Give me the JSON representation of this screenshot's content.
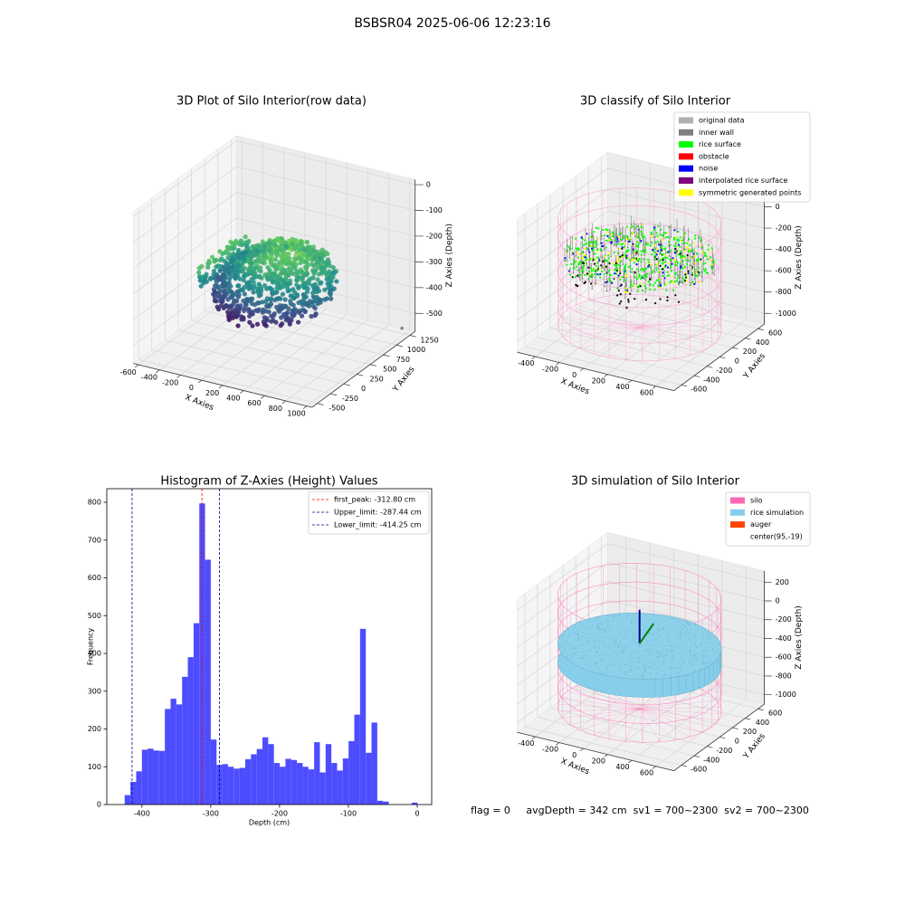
{
  "title": "BSBSR04 2025-06-06 12:23:16",
  "chart_data": [
    {
      "type": "scatter3d",
      "title": "3D Plot of Silo Interior(row data)",
      "xlabel": "X Axies",
      "ylabel": "Y Axies",
      "zlabel": "Z Axies (Depth)",
      "xlim": [
        -650,
        1050
      ],
      "ylim": [
        -600,
        1350
      ],
      "zlim": [
        -570,
        20
      ],
      "xticks": [
        -600,
        -400,
        -200,
        0,
        200,
        400,
        600,
        800,
        1000
      ],
      "yticks": [
        -500,
        -250,
        0,
        250,
        500,
        750,
        1000,
        1250
      ],
      "zticks": [
        -500,
        -400,
        -300,
        -200,
        -100,
        0
      ]
    },
    {
      "type": "classify3d",
      "title": "3D classify of Silo Interior",
      "xlabel": "X Axies",
      "ylabel": "Y Axies",
      "zlabel": "Z Axies (Depth)",
      "xlim": [
        -550,
        750
      ],
      "ylim": [
        -720,
        700
      ],
      "zlim": [
        -1100,
        150
      ],
      "xticks": [
        -400,
        -200,
        0,
        200,
        400,
        600
      ],
      "yticks": [
        -600,
        -400,
        -200,
        0,
        200,
        400,
        600
      ],
      "zticks": [
        -1000,
        -800,
        -600,
        -400,
        -200,
        0
      ],
      "legend": "upper right",
      "series": [
        {
          "name": "original data",
          "color": "#b0b0b0"
        },
        {
          "name": "inner wall",
          "color": "#808080"
        },
        {
          "name": "rice surface",
          "color": "#00ff00"
        },
        {
          "name": "obstacle",
          "color": "#ff0000"
        },
        {
          "name": "noise",
          "color": "#0000ff"
        },
        {
          "name": "interpolated rice surface",
          "color": "#800080"
        },
        {
          "name": "symmetric generated points",
          "color": "#ffff00"
        }
      ]
    },
    {
      "type": "histogram",
      "title": "Histogram of Z-Axies (Height) Values",
      "xlabel": "Depth (cm)",
      "ylabel": "Frequency",
      "color": "#4d4dff",
      "bins": [
        -425.0,
        -416.66,
        -408.32,
        -399.98,
        -391.64,
        -383.3,
        -374.96,
        -366.62,
        -358.28,
        -349.94,
        -341.6,
        -333.26,
        -324.92,
        -316.58,
        -308.24,
        -299.9,
        -291.56,
        -283.22,
        -274.88,
        -266.54,
        -258.2,
        -249.86,
        -241.52,
        -233.18,
        -224.84,
        -216.5,
        -208.16,
        -199.82,
        -191.48,
        -183.14,
        -174.8,
        -166.46,
        -158.12,
        -149.78,
        -141.44,
        -133.1,
        -124.76,
        -116.42,
        -108.08,
        -99.74,
        -91.4,
        -83.06,
        -74.72,
        -66.38,
        -58.04,
        -49.7,
        -41.36,
        -33.02,
        -24.68,
        -16.34,
        -8.0,
        0.34
      ],
      "counts": [
        25,
        60,
        88,
        145,
        148,
        143,
        142,
        253,
        280,
        265,
        338,
        390,
        480,
        797,
        648,
        172,
        105,
        107,
        100,
        95,
        97,
        120,
        133,
        147,
        178,
        160,
        110,
        100,
        121,
        118,
        110,
        100,
        93,
        165,
        85,
        160,
        110,
        90,
        122,
        168,
        238,
        465,
        137,
        217,
        10,
        8,
        0,
        0,
        0,
        0,
        5
      ],
      "xlim": [
        -451,
        21
      ],
      "ylim": [
        0,
        836
      ],
      "xticks": [
        -400,
        -300,
        -200,
        -100,
        0
      ],
      "yticks": [
        0,
        100,
        200,
        300,
        400,
        500,
        600,
        700,
        800
      ],
      "legend": "upper right",
      "vlines": [
        {
          "label": "first_peak: -312.80 cm",
          "value": -312.8,
          "color": "#ff0000"
        },
        {
          "label": "Upper_limit: -287.44 cm",
          "value": -287.44,
          "color": "#00008b"
        },
        {
          "label": "Lower_limit: -414.25 cm",
          "value": -414.25,
          "color": "#00008b"
        }
      ]
    },
    {
      "type": "simulation3d",
      "title": "3D simulation of Silo Interior",
      "xlabel": "X Axies",
      "ylabel": "Y Axies",
      "zlabel": "Z Axies (Depth)",
      "xlim": [
        -550,
        750
      ],
      "ylim": [
        -720,
        700
      ],
      "zlim": [
        -1100,
        320
      ],
      "xticks": [
        -400,
        -200,
        0,
        200,
        400,
        600
      ],
      "yticks": [
        -600,
        -400,
        -200,
        0,
        200,
        400,
        600
      ],
      "zticks": [
        -1000,
        -800,
        -600,
        -400,
        -200,
        0,
        200
      ],
      "legend": "upper right",
      "series": [
        {
          "name": "silo",
          "color": "#ff69b4"
        },
        {
          "name": "rice simulation",
          "color": "#87ceeb"
        },
        {
          "name": "auger",
          "color": "#ff4500"
        },
        {
          "name": "center(95,-19)",
          "color": "#ffffff"
        }
      ]
    }
  ],
  "footer": "flag = 0     avgDepth = 342 cm  sv1 = 700~2300  sv2 = 700~2300"
}
